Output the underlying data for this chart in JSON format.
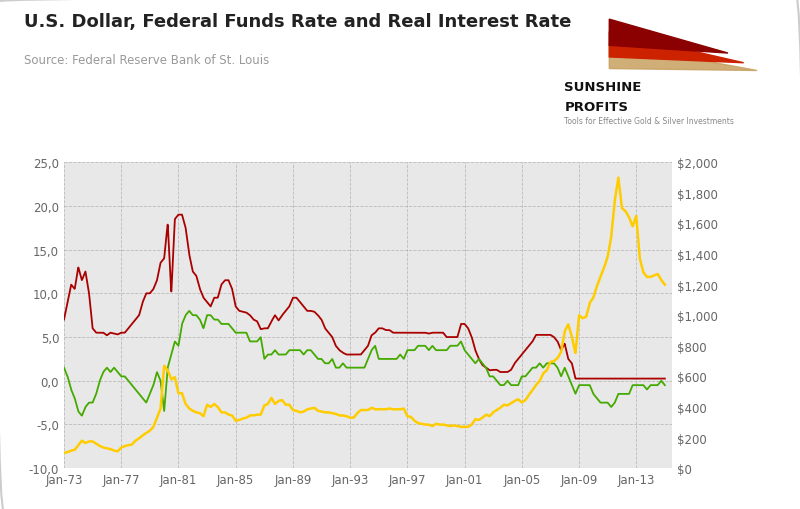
{
  "title": "U.S. Dollar, Federal Funds Rate and Real Interest Rate",
  "source": "Source: Federal Reserve Bank of St. Louis",
  "plot_bg_color": "#e8e8e8",
  "left_ylim": [
    -10,
    25
  ],
  "right_ylim": [
    0,
    2000
  ],
  "left_yticks": [
    -10,
    -5,
    0,
    5,
    10,
    15,
    20,
    25
  ],
  "right_yticks": [
    0,
    200,
    400,
    600,
    800,
    1000,
    1200,
    1400,
    1600,
    1800,
    2000
  ],
  "fed_funds_color": "#aa0000",
  "real_rate_color": "#44aa00",
  "gold_color": "#ffcc00",
  "line_width": 1.3,
  "fed_funds_rate": {
    "years": [
      1973.0,
      1973.25,
      1973.5,
      1973.75,
      1974.0,
      1974.25,
      1974.5,
      1974.75,
      1975.0,
      1975.25,
      1975.5,
      1975.75,
      1976.0,
      1976.25,
      1976.5,
      1976.75,
      1977.0,
      1977.25,
      1977.5,
      1977.75,
      1978.0,
      1978.25,
      1978.5,
      1978.75,
      1979.0,
      1979.25,
      1979.5,
      1979.75,
      1980.0,
      1980.25,
      1980.5,
      1980.75,
      1981.0,
      1981.25,
      1981.5,
      1981.75,
      1982.0,
      1982.25,
      1982.5,
      1982.75,
      1983.0,
      1983.25,
      1983.5,
      1983.75,
      1984.0,
      1984.25,
      1984.5,
      1984.75,
      1985.0,
      1985.25,
      1985.5,
      1985.75,
      1986.0,
      1986.25,
      1986.5,
      1986.75,
      1987.0,
      1987.25,
      1987.5,
      1987.75,
      1988.0,
      1988.25,
      1988.5,
      1988.75,
      1989.0,
      1989.25,
      1989.5,
      1989.75,
      1990.0,
      1990.25,
      1990.5,
      1990.75,
      1991.0,
      1991.25,
      1991.5,
      1991.75,
      1992.0,
      1992.25,
      1992.5,
      1992.75,
      1993.0,
      1993.25,
      1993.5,
      1993.75,
      1994.0,
      1994.25,
      1994.5,
      1994.75,
      1995.0,
      1995.25,
      1995.5,
      1995.75,
      1996.0,
      1996.25,
      1996.5,
      1996.75,
      1997.0,
      1997.25,
      1997.5,
      1997.75,
      1998.0,
      1998.25,
      1998.5,
      1998.75,
      1999.0,
      1999.25,
      1999.5,
      1999.75,
      2000.0,
      2000.25,
      2000.5,
      2000.75,
      2001.0,
      2001.25,
      2001.5,
      2001.75,
      2002.0,
      2002.25,
      2002.5,
      2002.75,
      2003.0,
      2003.25,
      2003.5,
      2003.75,
      2004.0,
      2004.25,
      2004.5,
      2004.75,
      2005.0,
      2005.25,
      2005.5,
      2005.75,
      2006.0,
      2006.25,
      2006.5,
      2006.75,
      2007.0,
      2007.25,
      2007.5,
      2007.75,
      2008.0,
      2008.25,
      2008.5,
      2008.75,
      2009.0,
      2009.25,
      2009.5,
      2009.75,
      2010.0,
      2010.25,
      2010.5,
      2010.75,
      2011.0,
      2011.25,
      2011.5,
      2011.75,
      2012.0,
      2012.25,
      2012.5,
      2012.75,
      2013.0,
      2013.25,
      2013.5,
      2013.75,
      2014.0,
      2014.25,
      2014.5,
      2014.75,
      2015.0
    ],
    "values": [
      7.0,
      9.0,
      11.0,
      10.5,
      13.0,
      11.5,
      12.5,
      10.0,
      6.0,
      5.5,
      5.5,
      5.5,
      5.2,
      5.5,
      5.4,
      5.3,
      5.5,
      5.5,
      6.0,
      6.5,
      7.0,
      7.5,
      9.0,
      10.0,
      10.0,
      10.5,
      11.5,
      13.5,
      14.0,
      18.0,
      10.0,
      18.5,
      19.0,
      19.0,
      17.5,
      14.5,
      12.5,
      12.0,
      10.5,
      9.5,
      9.0,
      8.5,
      9.5,
      9.5,
      11.0,
      11.5,
      11.5,
      10.5,
      8.5,
      8.0,
      7.9,
      7.8,
      7.5,
      7.0,
      6.8,
      5.9,
      6.0,
      6.0,
      6.8,
      7.5,
      6.9,
      7.5,
      8.0,
      8.5,
      9.5,
      9.5,
      9.0,
      8.5,
      8.0,
      8.0,
      7.9,
      7.5,
      7.0,
      6.0,
      5.5,
      5.0,
      4.0,
      3.5,
      3.2,
      3.0,
      3.0,
      3.0,
      3.0,
      3.0,
      3.5,
      4.0,
      5.2,
      5.5,
      6.0,
      6.0,
      5.8,
      5.8,
      5.5,
      5.5,
      5.5,
      5.5,
      5.5,
      5.5,
      5.5,
      5.5,
      5.5,
      5.5,
      5.4,
      5.5,
      5.5,
      5.5,
      5.5,
      5.0,
      5.0,
      5.0,
      5.0,
      6.5,
      6.5,
      6.0,
      5.0,
      3.5,
      2.5,
      1.8,
      1.5,
      1.2,
      1.25,
      1.25,
      1.0,
      1.0,
      1.0,
      1.25,
      2.0,
      2.5,
      3.0,
      3.5,
      4.0,
      4.5,
      5.25,
      5.25,
      5.25,
      5.25,
      5.25,
      5.0,
      4.5,
      3.5,
      4.25,
      2.5,
      2.0,
      0.25,
      0.25,
      0.25,
      0.25,
      0.25,
      0.25,
      0.25,
      0.25,
      0.25,
      0.25,
      0.25,
      0.25,
      0.25,
      0.25,
      0.25,
      0.25,
      0.25,
      0.25,
      0.25,
      0.25,
      0.25,
      0.25,
      0.25,
      0.25,
      0.25,
      0.25
    ]
  },
  "real_rate": {
    "years": [
      1973.0,
      1973.25,
      1973.5,
      1973.75,
      1974.0,
      1974.25,
      1974.5,
      1974.75,
      1975.0,
      1975.25,
      1975.5,
      1975.75,
      1976.0,
      1976.25,
      1976.5,
      1976.75,
      1977.0,
      1977.25,
      1977.5,
      1977.75,
      1978.0,
      1978.25,
      1978.5,
      1978.75,
      1979.0,
      1979.25,
      1979.5,
      1979.75,
      1980.0,
      1980.25,
      1980.5,
      1980.75,
      1981.0,
      1981.25,
      1981.5,
      1981.75,
      1982.0,
      1982.25,
      1982.5,
      1982.75,
      1983.0,
      1983.25,
      1983.5,
      1983.75,
      1984.0,
      1984.25,
      1984.5,
      1984.75,
      1985.0,
      1985.25,
      1985.5,
      1985.75,
      1986.0,
      1986.25,
      1986.5,
      1986.75,
      1987.0,
      1987.25,
      1987.5,
      1987.75,
      1988.0,
      1988.25,
      1988.5,
      1988.75,
      1989.0,
      1989.25,
      1989.5,
      1989.75,
      1990.0,
      1990.25,
      1990.5,
      1990.75,
      1991.0,
      1991.25,
      1991.5,
      1991.75,
      1992.0,
      1992.25,
      1992.5,
      1992.75,
      1993.0,
      1993.25,
      1993.5,
      1993.75,
      1994.0,
      1994.25,
      1994.5,
      1994.75,
      1995.0,
      1995.25,
      1995.5,
      1995.75,
      1996.0,
      1996.25,
      1996.5,
      1996.75,
      1997.0,
      1997.25,
      1997.5,
      1997.75,
      1998.0,
      1998.25,
      1998.5,
      1998.75,
      1999.0,
      1999.25,
      1999.5,
      1999.75,
      2000.0,
      2000.25,
      2000.5,
      2000.75,
      2001.0,
      2001.25,
      2001.5,
      2001.75,
      2002.0,
      2002.25,
      2002.5,
      2002.75,
      2003.0,
      2003.25,
      2003.5,
      2003.75,
      2004.0,
      2004.25,
      2004.5,
      2004.75,
      2005.0,
      2005.25,
      2005.5,
      2005.75,
      2006.0,
      2006.25,
      2006.5,
      2006.75,
      2007.0,
      2007.25,
      2007.5,
      2007.75,
      2008.0,
      2008.25,
      2008.5,
      2008.75,
      2009.0,
      2009.25,
      2009.5,
      2009.75,
      2010.0,
      2010.25,
      2010.5,
      2010.75,
      2011.0,
      2011.25,
      2011.5,
      2011.75,
      2012.0,
      2012.25,
      2012.5,
      2012.75,
      2013.0,
      2013.25,
      2013.5,
      2013.75,
      2014.0,
      2014.25,
      2014.5,
      2014.75,
      2015.0
    ],
    "values": [
      1.5,
      0.5,
      -1.0,
      -2.0,
      -3.5,
      -4.0,
      -3.0,
      -2.5,
      -2.5,
      -1.5,
      0.0,
      1.0,
      1.5,
      1.0,
      1.5,
      1.0,
      0.5,
      0.5,
      0.0,
      -0.5,
      -1.0,
      -1.5,
      -2.0,
      -2.5,
      -1.5,
      -0.5,
      1.0,
      0.0,
      -3.5,
      1.5,
      3.0,
      4.5,
      4.0,
      6.5,
      7.5,
      8.0,
      7.5,
      7.5,
      7.0,
      6.0,
      7.5,
      7.5,
      7.0,
      7.0,
      6.5,
      6.5,
      6.5,
      6.0,
      5.5,
      5.5,
      5.5,
      5.5,
      4.5,
      4.5,
      4.5,
      5.0,
      2.5,
      3.0,
      3.0,
      3.5,
      3.0,
      3.0,
      3.0,
      3.5,
      3.5,
      3.5,
      3.5,
      3.0,
      3.5,
      3.5,
      3.0,
      2.5,
      2.5,
      2.0,
      2.0,
      2.5,
      1.5,
      1.5,
      2.0,
      1.5,
      1.5,
      1.5,
      1.5,
      1.5,
      1.5,
      2.5,
      3.5,
      4.0,
      2.5,
      2.5,
      2.5,
      2.5,
      2.5,
      2.5,
      3.0,
      2.5,
      3.5,
      3.5,
      3.5,
      4.0,
      4.0,
      4.0,
      3.5,
      4.0,
      3.5,
      3.5,
      3.5,
      3.5,
      4.0,
      4.0,
      4.0,
      4.5,
      3.5,
      3.0,
      2.5,
      2.0,
      2.5,
      2.0,
      1.5,
      0.5,
      0.5,
      0.0,
      -0.5,
      -0.5,
      0.0,
      -0.5,
      -0.5,
      -0.5,
      0.5,
      0.5,
      1.0,
      1.5,
      1.5,
      2.0,
      1.5,
      2.0,
      2.0,
      2.0,
      1.5,
      0.5,
      1.5,
      0.5,
      -0.5,
      -1.5,
      -0.5,
      -0.5,
      -0.5,
      -0.5,
      -1.5,
      -2.0,
      -2.5,
      -2.5,
      -2.5,
      -3.0,
      -2.5,
      -1.5,
      -1.5,
      -1.5,
      -1.5,
      -0.5,
      -0.5,
      -0.5,
      -0.5,
      -1.0,
      -0.5,
      -0.5,
      -0.5,
      0.0,
      -0.5
    ]
  },
  "gold": {
    "years": [
      1973.0,
      1973.25,
      1973.5,
      1973.75,
      1974.0,
      1974.25,
      1974.5,
      1974.75,
      1975.0,
      1975.25,
      1975.5,
      1975.75,
      1976.0,
      1976.25,
      1976.5,
      1976.75,
      1977.0,
      1977.25,
      1977.5,
      1977.75,
      1978.0,
      1978.25,
      1978.5,
      1978.75,
      1979.0,
      1979.25,
      1979.5,
      1979.75,
      1980.0,
      1980.25,
      1980.5,
      1980.75,
      1981.0,
      1981.25,
      1981.5,
      1981.75,
      1982.0,
      1982.25,
      1982.5,
      1982.75,
      1983.0,
      1983.25,
      1983.5,
      1983.75,
      1984.0,
      1984.25,
      1984.5,
      1984.75,
      1985.0,
      1985.25,
      1985.5,
      1985.75,
      1986.0,
      1986.25,
      1986.5,
      1986.75,
      1987.0,
      1987.25,
      1987.5,
      1987.75,
      1988.0,
      1988.25,
      1988.5,
      1988.75,
      1989.0,
      1989.25,
      1989.5,
      1989.75,
      1990.0,
      1990.25,
      1990.5,
      1990.75,
      1991.0,
      1991.25,
      1991.5,
      1991.75,
      1992.0,
      1992.25,
      1992.5,
      1992.75,
      1993.0,
      1993.25,
      1993.5,
      1993.75,
      1994.0,
      1994.25,
      1994.5,
      1994.75,
      1995.0,
      1995.25,
      1995.5,
      1995.75,
      1996.0,
      1996.25,
      1996.5,
      1996.75,
      1997.0,
      1997.25,
      1997.5,
      1997.75,
      1998.0,
      1998.25,
      1998.5,
      1998.75,
      1999.0,
      1999.25,
      1999.5,
      1999.75,
      2000.0,
      2000.25,
      2000.5,
      2000.75,
      2001.0,
      2001.25,
      2001.5,
      2001.75,
      2002.0,
      2002.25,
      2002.5,
      2002.75,
      2003.0,
      2003.25,
      2003.5,
      2003.75,
      2004.0,
      2004.25,
      2004.5,
      2004.75,
      2005.0,
      2005.25,
      2005.5,
      2005.75,
      2006.0,
      2006.25,
      2006.5,
      2006.75,
      2007.0,
      2007.25,
      2007.5,
      2007.75,
      2008.0,
      2008.25,
      2008.5,
      2008.75,
      2009.0,
      2009.25,
      2009.5,
      2009.75,
      2010.0,
      2010.25,
      2010.5,
      2010.75,
      2011.0,
      2011.25,
      2011.5,
      2011.75,
      2012.0,
      2012.25,
      2012.5,
      2012.75,
      2013.0,
      2013.25,
      2013.5,
      2013.75,
      2014.0,
      2014.25,
      2014.5,
      2014.75,
      2015.0
    ],
    "values": [
      100,
      105,
      115,
      120,
      150,
      180,
      165,
      175,
      175,
      160,
      145,
      135,
      130,
      125,
      115,
      110,
      135,
      145,
      150,
      155,
      180,
      195,
      215,
      230,
      245,
      270,
      330,
      390,
      670,
      640,
      580,
      595,
      490,
      490,
      420,
      390,
      375,
      365,
      360,
      340,
      415,
      400,
      420,
      400,
      365,
      365,
      350,
      345,
      310,
      315,
      325,
      330,
      345,
      345,
      350,
      350,
      410,
      420,
      460,
      420,
      440,
      445,
      415,
      415,
      380,
      375,
      365,
      370,
      385,
      390,
      395,
      375,
      370,
      365,
      365,
      360,
      355,
      345,
      345,
      340,
      330,
      330,
      360,
      380,
      380,
      380,
      395,
      385,
      385,
      385,
      385,
      390,
      385,
      385,
      385,
      390,
      340,
      335,
      310,
      295,
      290,
      285,
      285,
      275,
      290,
      285,
      285,
      280,
      275,
      280,
      275,
      270,
      270,
      270,
      285,
      320,
      315,
      330,
      350,
      340,
      365,
      380,
      395,
      415,
      410,
      425,
      440,
      450,
      430,
      445,
      480,
      510,
      545,
      570,
      620,
      640,
      695,
      700,
      720,
      760,
      895,
      940,
      860,
      750,
      1000,
      980,
      990,
      1080,
      1115,
      1190,
      1250,
      1310,
      1380,
      1510,
      1750,
      1900,
      1700,
      1680,
      1640,
      1580,
      1650,
      1370,
      1280,
      1250,
      1250,
      1260,
      1270,
      1230,
      1200
    ]
  },
  "xtick_labels": [
    "Jan-73",
    "Jan-77",
    "Jan-81",
    "Jan-85",
    "Jan-89",
    "Jan-93",
    "Jan-97",
    "Jan-01",
    "Jan-05",
    "Jan-09",
    "Jan-13"
  ],
  "xtick_years": [
    1973,
    1977,
    1981,
    1985,
    1989,
    1993,
    1997,
    2001,
    2005,
    2009,
    2013
  ],
  "xmin": 1973.0,
  "xmax": 2015.5
}
